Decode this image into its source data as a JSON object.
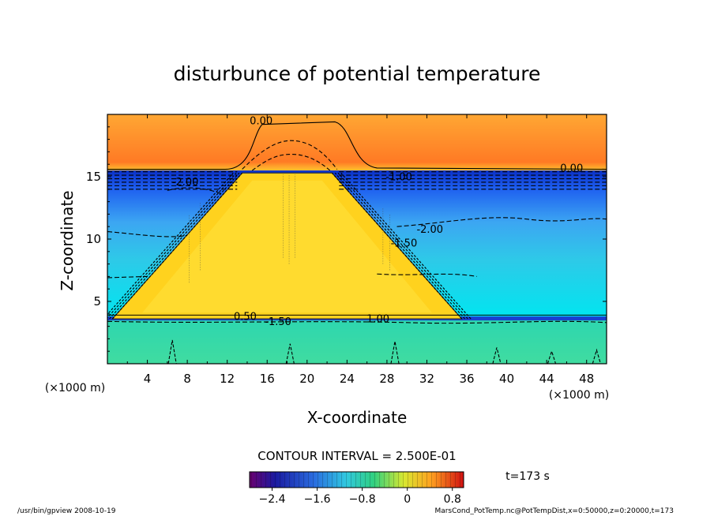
{
  "chart_data": {
    "type": "heatmap",
    "title": "disturbunce of potential temperature",
    "xlabel": "X-coordinate",
    "ylabel": "Z-coordinate",
    "x_unit_left": "(×1000 m)",
    "x_unit_right": "(×1000 m)",
    "xlim": [
      0,
      50
    ],
    "ylim": [
      0,
      20
    ],
    "x_ticks": [
      4,
      8,
      12,
      16,
      20,
      24,
      28,
      32,
      36,
      40,
      44,
      48
    ],
    "y_ticks": [
      5,
      10,
      15
    ],
    "contour_interval_text": "CONTOUR INTERVAL = 2.500E-01",
    "time_text": "t=173 s",
    "colorbar": {
      "range": [
        -2.8,
        1.0
      ],
      "ticks": [
        -2.4,
        -1.6,
        -0.8,
        0,
        0.8
      ]
    },
    "contour_labels": [
      {
        "text": "0.00",
        "x": 15.4,
        "z": 19.4
      },
      {
        "text": "0.00",
        "x": 46.5,
        "z": 15.6
      },
      {
        "text": "-2.00",
        "x": 7.8,
        "z": 14.5
      },
      {
        "text": "-1.00",
        "x": 29.2,
        "z": 14.9
      },
      {
        "text": "-2.00",
        "x": 32.3,
        "z": 10.7
      },
      {
        "text": "-1.50",
        "x": 29.7,
        "z": 9.6
      },
      {
        "text": "0.50",
        "x": 13.8,
        "z": 3.7
      },
      {
        "text": "-1.50",
        "x": 17.1,
        "z": 3.3
      },
      {
        "text": "1.00",
        "x": 27.1,
        "z": 3.5
      }
    ],
    "regions": [
      {
        "name": "upper-warm-layer",
        "zmin": 15.5,
        "zmax": 20,
        "value": 0.45
      },
      {
        "name": "cold-layer",
        "zmin": 3.6,
        "zmax": 15.5,
        "value": -2.0
      },
      {
        "name": "warm-trapezoid",
        "base": [
          0.5,
          35.5
        ],
        "base_z": 3.6,
        "top": [
          13.5,
          22.5
        ],
        "top_z": 15.3,
        "value": 0.55
      },
      {
        "name": "bottom-layer",
        "zmin": 0,
        "zmax": 3.6,
        "value": -1.4
      }
    ]
  },
  "footer": {
    "left": "/usr/bin/gpview   2008-10-19",
    "right": "MarsCond_PotTemp.nc@PotTempDist,x=0:50000,z=0:20000,t=173"
  }
}
